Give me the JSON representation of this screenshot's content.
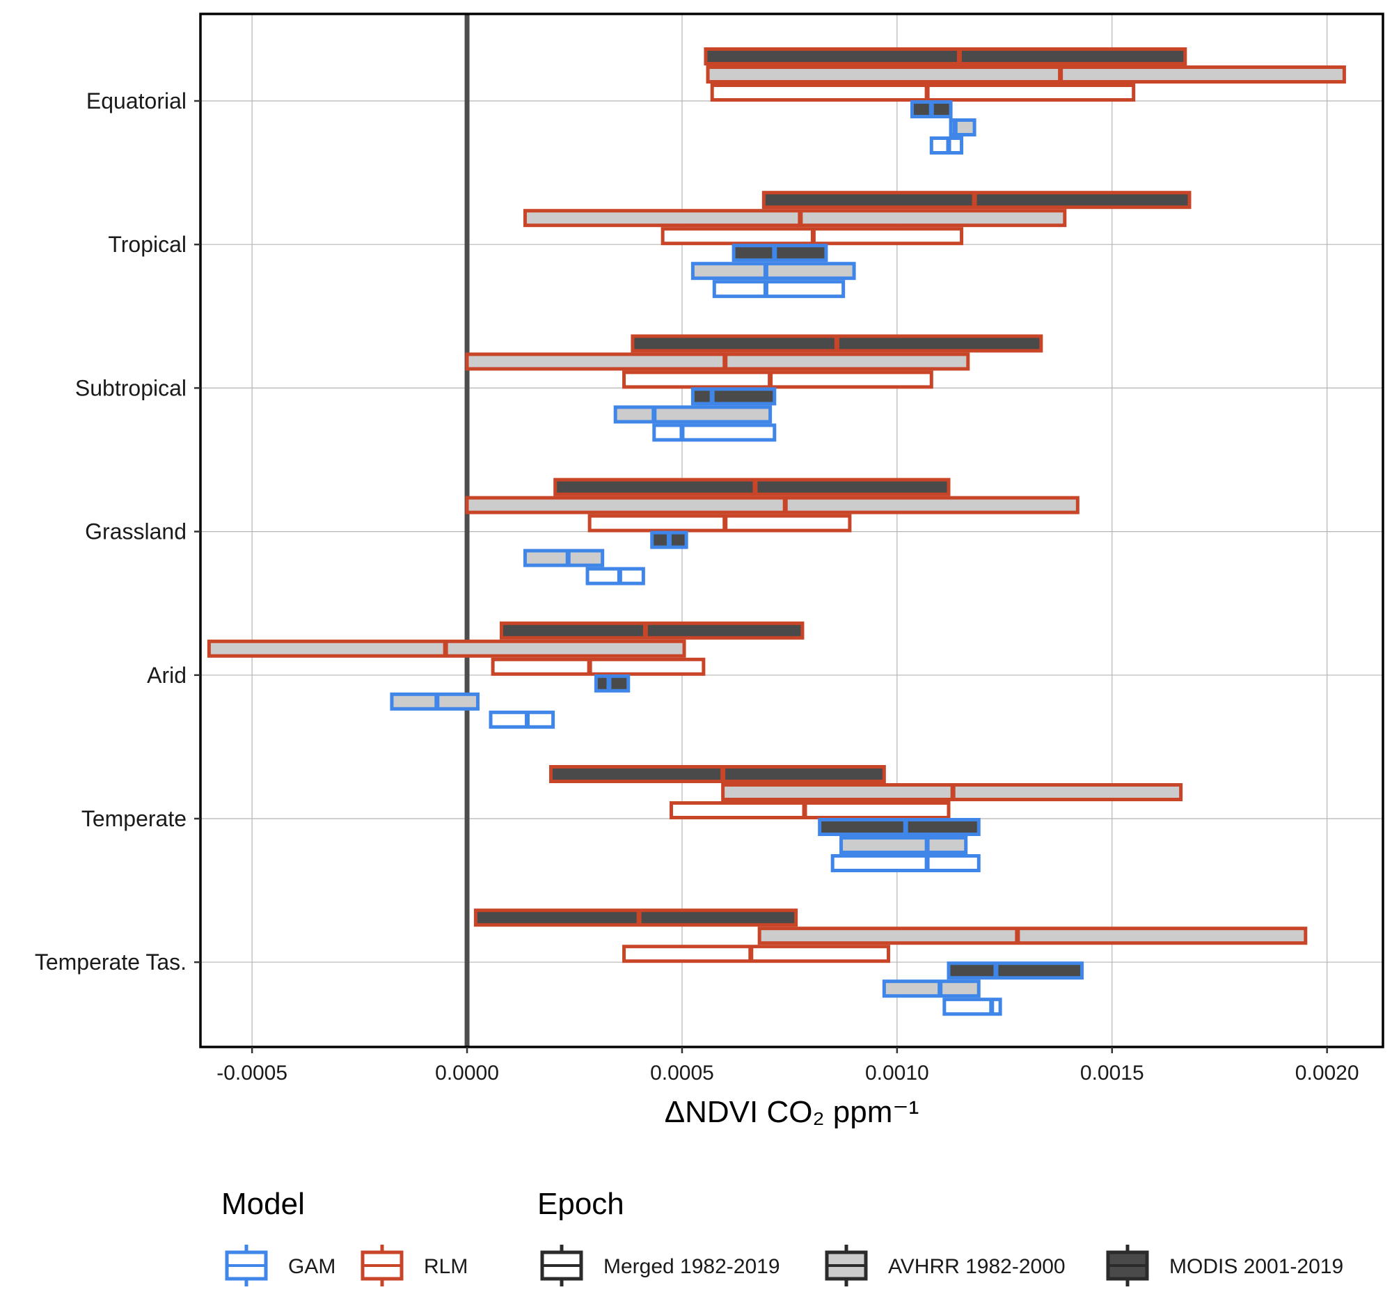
{
  "chart_data": {
    "type": "crossbar",
    "xlabel": "ΔNDVI CO₂ ppm⁻¹",
    "xlim": [
      -0.00062,
      0.00213
    ],
    "x_ticks": [
      -0.0005,
      0.0,
      0.0005,
      0.001,
      0.0015,
      0.002
    ],
    "x_tick_labels": [
      "-0.0005",
      "0.0000",
      "0.0005",
      "0.0010",
      "0.0015",
      "0.0020"
    ],
    "reference_line_x": 0,
    "grid": true,
    "categories": [
      "Equatorial",
      "Tropical",
      "Subtropical",
      "Grassland",
      "Arid",
      "Temperate",
      "Temperate Tas."
    ],
    "models": [
      {
        "name": "GAM",
        "color": "#3f86e8"
      },
      {
        "name": "RLM",
        "color": "#c94528"
      }
    ],
    "epochs": [
      {
        "name": "Merged 1982-2019",
        "fill": "#ffffff"
      },
      {
        "name": "AVHRR 1982-2000",
        "fill": "#cccccc"
      },
      {
        "name": "MODIS 2001-2019",
        "fill": "#4a4a4a"
      }
    ],
    "series": [
      {
        "category": "Equatorial",
        "model": "RLM",
        "epoch": "MODIS 2001-2019",
        "low": 0.000555,
        "mid": 0.001145,
        "high": 0.00167
      },
      {
        "category": "Equatorial",
        "model": "RLM",
        "epoch": "AVHRR 1982-2000",
        "low": 0.00056,
        "mid": 0.00138,
        "high": 0.00204
      },
      {
        "category": "Equatorial",
        "model": "RLM",
        "epoch": "Merged 1982-2019",
        "low": 0.00057,
        "mid": 0.00107,
        "high": 0.00155
      },
      {
        "category": "Equatorial",
        "model": "GAM",
        "epoch": "MODIS 2001-2019",
        "low": 0.001035,
        "mid": 0.00108,
        "high": 0.001125
      },
      {
        "category": "Equatorial",
        "model": "GAM",
        "epoch": "AVHRR 1982-2000",
        "low": 0.001125,
        "mid": 0.001135,
        "high": 0.00118
      },
      {
        "category": "Equatorial",
        "model": "GAM",
        "epoch": "Merged 1982-2019",
        "low": 0.00108,
        "mid": 0.00112,
        "high": 0.00115
      },
      {
        "category": "Tropical",
        "model": "RLM",
        "epoch": "MODIS 2001-2019",
        "low": 0.00069,
        "mid": 0.00118,
        "high": 0.00168
      },
      {
        "category": "Tropical",
        "model": "RLM",
        "epoch": "AVHRR 1982-2000",
        "low": 0.000135,
        "mid": 0.000775,
        "high": 0.00139
      },
      {
        "category": "Tropical",
        "model": "RLM",
        "epoch": "Merged 1982-2019",
        "low": 0.000455,
        "mid": 0.000805,
        "high": 0.00115
      },
      {
        "category": "Tropical",
        "model": "GAM",
        "epoch": "MODIS 2001-2019",
        "low": 0.00062,
        "mid": 0.000715,
        "high": 0.000835
      },
      {
        "category": "Tropical",
        "model": "GAM",
        "epoch": "AVHRR 1982-2000",
        "low": 0.000525,
        "mid": 0.000695,
        "high": 0.0009
      },
      {
        "category": "Tropical",
        "model": "GAM",
        "epoch": "Merged 1982-2019",
        "low": 0.000575,
        "mid": 0.000695,
        "high": 0.000875
      },
      {
        "category": "Subtropical",
        "model": "RLM",
        "epoch": "MODIS 2001-2019",
        "low": 0.000385,
        "mid": 0.00086,
        "high": 0.001335
      },
      {
        "category": "Subtropical",
        "model": "RLM",
        "epoch": "AVHRR 1982-2000",
        "low": 0.0,
        "mid": 0.0006,
        "high": 0.001165
      },
      {
        "category": "Subtropical",
        "model": "RLM",
        "epoch": "Merged 1982-2019",
        "low": 0.000365,
        "mid": 0.000705,
        "high": 0.00108
      },
      {
        "category": "Subtropical",
        "model": "GAM",
        "epoch": "MODIS 2001-2019",
        "low": 0.000525,
        "mid": 0.00057,
        "high": 0.000715
      },
      {
        "category": "Subtropical",
        "model": "GAM",
        "epoch": "AVHRR 1982-2000",
        "low": 0.000345,
        "mid": 0.000435,
        "high": 0.000705
      },
      {
        "category": "Subtropical",
        "model": "GAM",
        "epoch": "Merged 1982-2019",
        "low": 0.000435,
        "mid": 0.0005,
        "high": 0.000715
      },
      {
        "category": "Grassland",
        "model": "RLM",
        "epoch": "MODIS 2001-2019",
        "low": 0.000205,
        "mid": 0.00067,
        "high": 0.00112
      },
      {
        "category": "Grassland",
        "model": "RLM",
        "epoch": "AVHRR 1982-2000",
        "low": 0.0,
        "mid": 0.00074,
        "high": 0.00142
      },
      {
        "category": "Grassland",
        "model": "RLM",
        "epoch": "Merged 1982-2019",
        "low": 0.000285,
        "mid": 0.0006,
        "high": 0.00089
      },
      {
        "category": "Grassland",
        "model": "GAM",
        "epoch": "MODIS 2001-2019",
        "low": 0.00043,
        "mid": 0.00047,
        "high": 0.00051
      },
      {
        "category": "Grassland",
        "model": "GAM",
        "epoch": "AVHRR 1982-2000",
        "low": 0.000135,
        "mid": 0.000235,
        "high": 0.000315
      },
      {
        "category": "Grassland",
        "model": "GAM",
        "epoch": "Merged 1982-2019",
        "low": 0.00028,
        "mid": 0.000355,
        "high": 0.00041
      },
      {
        "category": "Arid",
        "model": "RLM",
        "epoch": "MODIS 2001-2019",
        "low": 8e-05,
        "mid": 0.000415,
        "high": 0.00078
      },
      {
        "category": "Arid",
        "model": "RLM",
        "epoch": "AVHRR 1982-2000",
        "low": -0.0006,
        "mid": -5e-05,
        "high": 0.000505
      },
      {
        "category": "Arid",
        "model": "RLM",
        "epoch": "Merged 1982-2019",
        "low": 6e-05,
        "mid": 0.000285,
        "high": 0.00055
      },
      {
        "category": "Arid",
        "model": "GAM",
        "epoch": "MODIS 2001-2019",
        "low": 0.0003,
        "mid": 0.00033,
        "high": 0.000375
      },
      {
        "category": "Arid",
        "model": "GAM",
        "epoch": "AVHRR 1982-2000",
        "low": -0.000175,
        "mid": -7e-05,
        "high": 2.5e-05
      },
      {
        "category": "Arid",
        "model": "GAM",
        "epoch": "Merged 1982-2019",
        "low": 5.5e-05,
        "mid": 0.00014,
        "high": 0.0002
      },
      {
        "category": "Temperate",
        "model": "RLM",
        "epoch": "MODIS 2001-2019",
        "low": 0.000195,
        "mid": 0.000595,
        "high": 0.00097
      },
      {
        "category": "Temperate",
        "model": "RLM",
        "epoch": "AVHRR 1982-2000",
        "low": 0.000595,
        "mid": 0.00113,
        "high": 0.00166
      },
      {
        "category": "Temperate",
        "model": "RLM",
        "epoch": "Merged 1982-2019",
        "low": 0.000475,
        "mid": 0.000785,
        "high": 0.00112
      },
      {
        "category": "Temperate",
        "model": "GAM",
        "epoch": "MODIS 2001-2019",
        "low": 0.00082,
        "mid": 0.00102,
        "high": 0.00119
      },
      {
        "category": "Temperate",
        "model": "GAM",
        "epoch": "AVHRR 1982-2000",
        "low": 0.00087,
        "mid": 0.00107,
        "high": 0.00116
      },
      {
        "category": "Temperate",
        "model": "GAM",
        "epoch": "Merged 1982-2019",
        "low": 0.00085,
        "mid": 0.00107,
        "high": 0.00119
      },
      {
        "category": "Temperate Tas.",
        "model": "RLM",
        "epoch": "MODIS 2001-2019",
        "low": 2e-05,
        "mid": 0.0004,
        "high": 0.000765
      },
      {
        "category": "Temperate Tas.",
        "model": "RLM",
        "epoch": "AVHRR 1982-2000",
        "low": 0.00068,
        "mid": 0.00128,
        "high": 0.00195
      },
      {
        "category": "Temperate Tas.",
        "model": "RLM",
        "epoch": "Merged 1982-2019",
        "low": 0.000365,
        "mid": 0.00066,
        "high": 0.00098
      },
      {
        "category": "Temperate Tas.",
        "model": "GAM",
        "epoch": "MODIS 2001-2019",
        "low": 0.00112,
        "mid": 0.00123,
        "high": 0.00143
      },
      {
        "category": "Temperate Tas.",
        "model": "GAM",
        "epoch": "AVHRR 1982-2000",
        "low": 0.00097,
        "mid": 0.0011,
        "high": 0.00119
      },
      {
        "category": "Temperate Tas.",
        "model": "GAM",
        "epoch": "Merged 1982-2019",
        "low": 0.00111,
        "mid": 0.00122,
        "high": 0.00124
      }
    ]
  },
  "legend": {
    "model_title": "Model",
    "model_items": [
      {
        "label": "GAM",
        "color": "#3f86e8"
      },
      {
        "label": "RLM",
        "color": "#c94528"
      }
    ],
    "epoch_title": "Epoch",
    "epoch_items": [
      {
        "label": "Merged 1982-2019",
        "fill": "#ffffff"
      },
      {
        "label": "AVHRR 1982-2000",
        "fill": "#cccccc"
      },
      {
        "label": "MODIS 2001-2019",
        "fill": "#4a4a4a"
      }
    ]
  }
}
